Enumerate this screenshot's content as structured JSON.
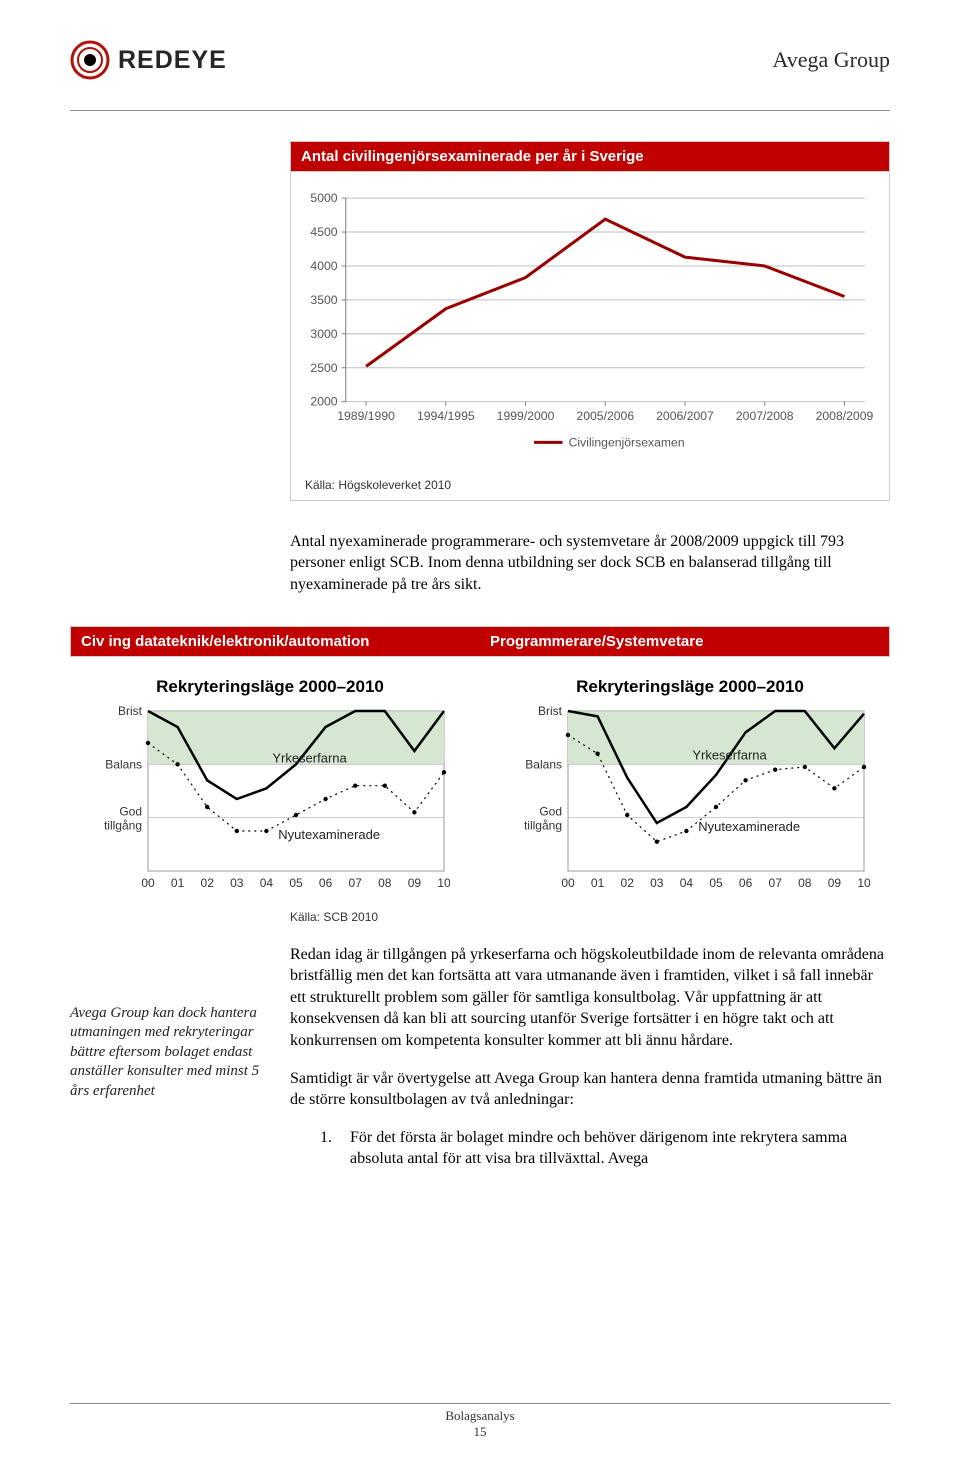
{
  "header": {
    "logo_text": "REDEYE",
    "company": "Avega Group",
    "logo_ring_color": "#b0120c",
    "logo_pupil_color": "#000000"
  },
  "chart1": {
    "title": "Antal civilingenjörsexaminerade per år i Sverige",
    "type": "line",
    "x_labels": [
      "1989/1990",
      "1994/1995",
      "1999/2000",
      "2005/2006",
      "2006/2007",
      "2007/2008",
      "2008/2009"
    ],
    "values": [
      2520,
      3370,
      3830,
      4690,
      4130,
      4000,
      3550
    ],
    "ylim": [
      2000,
      5000
    ],
    "ytick_step": 500,
    "line_color": "#990000",
    "line_width": 3,
    "grid_color": "#bfbfbf",
    "axis_color": "#808080",
    "label_fontsize": 12,
    "background_color": "#ffffff",
    "legend_label": "Civilingenjörsexamen",
    "source": "Källa: Högskoleverket 2010"
  },
  "para1": "Antal nyexaminerade programmerare- och systemvetare år 2008/2009 uppgick till 793 personer enligt SCB. Inom denna utbildning ser dock SCB en balanserad tillgång till nyexaminerade på tre års sikt.",
  "col_headers": {
    "left": "Civ ing datateknik/elektronik/automation",
    "right": "Programmerare/Systemvetare"
  },
  "mini_chart_title": "Rekryteringsläge 2000–2010",
  "mini_axis": {
    "y_labels": [
      "Brist",
      "Balans",
      "God tillgång"
    ],
    "x_labels": [
      "00",
      "01",
      "02",
      "03",
      "04",
      "05",
      "06",
      "07",
      "08",
      "09",
      "10"
    ],
    "band_color": "#d5e7d1",
    "line_solid_color": "#000000",
    "line_dash_color": "#000000",
    "background_color": "#ffffff",
    "grid_color": "#999999",
    "label_fontsize": 12,
    "solid_label": "Yrkeserfarna",
    "dash_label": "Nyutexaminerade"
  },
  "mini_left": {
    "solid_values": [
      3.0,
      2.7,
      1.7,
      1.35,
      1.55,
      2.0,
      2.7,
      3.0,
      3.0,
      2.25,
      3.0
    ],
    "dash_values": [
      2.4,
      2.0,
      1.2,
      0.75,
      0.75,
      1.05,
      1.35,
      1.6,
      1.6,
      1.1,
      1.85
    ]
  },
  "mini_right": {
    "solid_values": [
      3.0,
      2.9,
      1.75,
      0.9,
      1.2,
      1.8,
      2.6,
      3.0,
      3.0,
      2.3,
      2.95
    ],
    "dash_values": [
      2.55,
      2.2,
      1.05,
      0.55,
      0.75,
      1.2,
      1.7,
      1.9,
      1.95,
      1.55,
      1.95
    ]
  },
  "source2": "Källa: SCB 2010",
  "side_note": "Avega Group kan dock hantera utmaningen med rekryteringar bättre eftersom bolaget endast anställer konsulter med minst 5 års erfarenhet",
  "para2": "Redan idag är tillgången på yrkeserfarna och högskoleutbildade inom de relevanta områdena bristfällig men det kan fortsätta att vara utmanande även i framtiden, vilket i så fall innebär ett strukturellt problem som gäller för samtliga konsultbolag. Vår uppfattning är att konsekvensen då kan bli att sourcing utanför Sverige fortsätter i en högre takt och att konkurrensen om kompetenta konsulter kommer att bli ännu hårdare.",
  "para3": "Samtidigt är vår övertygelse att Avega Group kan hantera denna framtida utmaning bättre än de större konsultbolagen av två anledningar:",
  "list1_num": "1.",
  "list1_text": "För det första är bolaget mindre och behöver därigenom inte rekrytera samma absoluta antal för att visa bra tillväxttal. Avega",
  "footer": {
    "line1": "Bolagsanalys",
    "line2": "15"
  }
}
